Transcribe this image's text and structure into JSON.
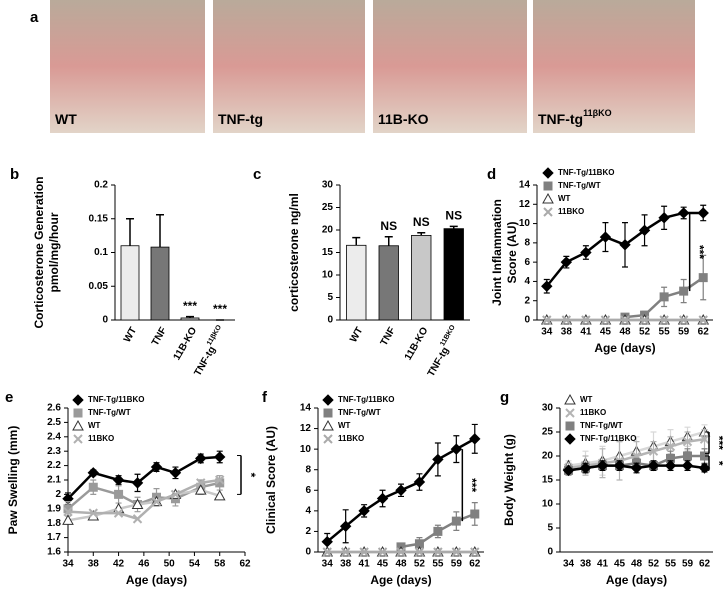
{
  "photos": {
    "letter": "a",
    "panels": [
      {
        "label": "WT"
      },
      {
        "label": "TNF-tg"
      },
      {
        "label": "11B-KO"
      },
      {
        "label": "TNF-tg",
        "sup": "11βKO"
      }
    ]
  },
  "chart_data": [
    {
      "type": "bar",
      "letter": "b",
      "ylabel": [
        "Corticosterone Generation",
        "pmol/mg/hour"
      ],
      "categories": [
        "WT",
        "TNF",
        "11B-KO",
        "TNF-tg"
      ],
      "category_superscripts": [
        null,
        null,
        null,
        "11βKO"
      ],
      "values": [
        0.11,
        0.108,
        0.003,
        0
      ],
      "errors": [
        0.04,
        0.048,
        0.002,
        0
      ],
      "colors": [
        "#ececec",
        "#777777",
        "#c8c8c8",
        "#000000"
      ],
      "bar_labels": [
        null,
        null,
        "***",
        "***"
      ],
      "ylim": [
        0,
        0.2
      ],
      "yticks": [
        0,
        0.05,
        0.1,
        0.15,
        0.2
      ]
    },
    {
      "type": "bar",
      "letter": "c",
      "ylabel": [
        "corticosterone ng/ml"
      ],
      "categories": [
        "WT",
        "TNF",
        "11B-KO",
        "TNF-tg"
      ],
      "category_superscripts": [
        null,
        null,
        null,
        "11BKO"
      ],
      "values": [
        16.6,
        16.5,
        18.8,
        20.3
      ],
      "errors": [
        1.7,
        2,
        0.6,
        0.5
      ],
      "colors": [
        "#ececec",
        "#777777",
        "#c8c8c8",
        "#000000"
      ],
      "bar_labels": [
        null,
        "NS",
        "NS",
        "NS"
      ],
      "ylim": [
        0,
        30
      ],
      "yticks": [
        0,
        5,
        10,
        15,
        20,
        25,
        30
      ]
    },
    {
      "type": "line",
      "letter": "d",
      "ylabel": [
        "Joint Inflammation",
        "Score  (AU)"
      ],
      "xlabel": "Age (days)",
      "categories": [
        "34",
        "38",
        "41",
        "45",
        "48",
        "52",
        "55",
        "59",
        "62"
      ],
      "series": [
        {
          "name": "TNF-Tg/11BKO",
          "color": "#000000",
          "marker": "diamond",
          "values": [
            3.5,
            6,
            7,
            8.6,
            7.8,
            9.3,
            10.6,
            11.1,
            11.1
          ],
          "errors": [
            0.7,
            0.6,
            0.7,
            1.5,
            2.3,
            1.6,
            1.2,
            0.6,
            0.8
          ]
        },
        {
          "name": "TNF-Tg/WT",
          "color": "#808080",
          "marker": "square",
          "values": [
            null,
            null,
            null,
            null,
            0.3,
            0.5,
            2.4,
            3,
            4.4
          ],
          "errors": [
            null,
            null,
            null,
            null,
            0.3,
            0.4,
            1,
            1.2,
            2.3
          ]
        },
        {
          "name": "WT",
          "color": "#aaaaaa",
          "marker": "triangle",
          "values": [
            0,
            0,
            0,
            0,
            0,
            0,
            0,
            0,
            0
          ]
        },
        {
          "name": "11BKO",
          "color": "#aaaaaa",
          "marker": "cross",
          "values": [
            0,
            0,
            0,
            0,
            0,
            0,
            0,
            0,
            0
          ]
        }
      ],
      "annotations": [
        "***"
      ],
      "ylim": [
        0,
        14
      ],
      "yticks": [
        0,
        2,
        4,
        6,
        8,
        10,
        12,
        14
      ]
    },
    {
      "type": "line",
      "letter": "e",
      "ylabel": [
        "Paw Swelling (mm)"
      ],
      "xlabel": "Age (days)",
      "x": [
        34,
        38,
        42,
        45,
        48,
        51,
        55,
        58
      ],
      "series": [
        {
          "name": "TNF-Tg/11BKO",
          "color": "#000000",
          "marker": "diamond",
          "values": [
            1.97,
            2.15,
            2.1,
            2.08,
            2.19,
            2.15,
            2.25,
            2.26
          ],
          "errors": [
            0.04,
            0.02,
            0.03,
            0.06,
            0.03,
            0.04,
            0.03,
            0.04
          ]
        },
        {
          "name": "TNF-Tg/WT",
          "color": "#9a9a9a",
          "marker": "square",
          "values": [
            1.9,
            2.05,
            2.0,
            1.93,
            1.98,
            1.97,
            2.05,
            2.08
          ],
          "errors": [
            0.05,
            0.05,
            0.06,
            0.05,
            0.06,
            0.05,
            0.05,
            0.05
          ]
        },
        {
          "name": "WT",
          "color": "#c8c8c8",
          "marker": "triangle",
          "values": [
            1.82,
            1.85,
            1.9,
            1.93,
            1.95,
            2.0,
            2.03,
            1.99
          ]
        },
        {
          "name": "11BKO",
          "color": "#b0b0b0",
          "marker": "cross",
          "values": [
            1.88,
            1.87,
            1.87,
            1.83,
            1.95,
            2.0,
            2.08,
            2.1
          ]
        }
      ],
      "annotations": [
        "*"
      ],
      "xlim": [
        34,
        62
      ],
      "xticks": [
        34,
        38,
        42,
        46,
        50,
        54,
        58,
        62
      ],
      "ylim": [
        1.6,
        2.6
      ],
      "yticks": [
        1.6,
        1.7,
        1.8,
        1.9,
        2,
        2.1,
        2.2,
        2.3,
        2.4,
        2.5,
        2.6
      ]
    },
    {
      "type": "line",
      "letter": "f",
      "ylabel": [
        "Clinical Score (AU)"
      ],
      "xlabel": "Age (days)",
      "categories": [
        "34",
        "38",
        "41",
        "45",
        "48",
        "52",
        "55",
        "59",
        "62"
      ],
      "series": [
        {
          "name": "TNF-Tg/11BKO",
          "color": "#000000",
          "marker": "diamond",
          "values": [
            1,
            2.5,
            4,
            5.2,
            6,
            6.8,
            9,
            10,
            11
          ],
          "errors": [
            0.8,
            1.6,
            0.6,
            0.8,
            0.6,
            0.8,
            1.6,
            1.3,
            1.4
          ]
        },
        {
          "name": "TNF-Tg/WT",
          "color": "#808080",
          "marker": "square",
          "values": [
            null,
            null,
            null,
            null,
            0.5,
            0.8,
            2,
            3,
            3.7
          ],
          "errors": [
            null,
            null,
            null,
            null,
            0.3,
            0.6,
            0.6,
            0.9,
            1.1
          ]
        },
        {
          "name": "WT",
          "color": "#aaaaaa",
          "marker": "triangle",
          "values": [
            0,
            0,
            0,
            0,
            0,
            0,
            0,
            0,
            0
          ]
        },
        {
          "name": "11BKO",
          "color": "#aaaaaa",
          "marker": "cross",
          "values": [
            0,
            0,
            0,
            0,
            0,
            0,
            0,
            0,
            0
          ]
        }
      ],
      "annotations": [
        "***"
      ],
      "ylim": [
        0,
        14
      ],
      "yticks": [
        0,
        2,
        4,
        6,
        8,
        10,
        12,
        14
      ]
    },
    {
      "type": "line",
      "letter": "g",
      "ylabel": [
        "Body Weight (g)"
      ],
      "xlabel": "Age (days)",
      "categories": [
        "34",
        "38",
        "41",
        "45",
        "48",
        "52",
        "55",
        "59",
        "62"
      ],
      "series": [
        {
          "name": "WT",
          "color": "#d8d8d8",
          "marker": "triangle",
          "values": [
            18,
            18.5,
            19,
            20,
            21,
            22,
            23,
            24,
            25
          ],
          "errors": [
            1,
            2.5,
            3,
            3,
            3,
            3,
            2.5,
            2,
            1.5
          ]
        },
        {
          "name": "11BKO",
          "color": "#b4b4b4",
          "marker": "cross",
          "values": [
            17.5,
            18,
            18.5,
            19,
            20,
            21,
            22,
            23,
            23.5
          ],
          "errors": [
            1,
            2,
            3,
            4,
            3,
            2,
            2,
            2,
            2
          ]
        },
        {
          "name": "TNF-Tg/WT",
          "color": "#808080",
          "marker": "square",
          "values": [
            17,
            17.5,
            18,
            18,
            18.5,
            18,
            19.5,
            20,
            20
          ],
          "errors": [
            1,
            1,
            1,
            1,
            1,
            1,
            1.5,
            1.5,
            1.5
          ]
        },
        {
          "name": "TNF-Tg/11BKO",
          "color": "#000000",
          "marker": "diamond",
          "values": [
            17,
            17.5,
            18,
            18,
            17.5,
            18,
            18,
            18,
            17.5
          ],
          "errors": [
            0.5,
            1,
            1,
            1,
            1,
            1,
            1,
            1,
            0.8
          ]
        }
      ],
      "annotations": [
        "***",
        "*"
      ],
      "ylim": [
        0,
        30
      ],
      "yticks": [
        0,
        5,
        10,
        15,
        20,
        25,
        30
      ]
    }
  ]
}
